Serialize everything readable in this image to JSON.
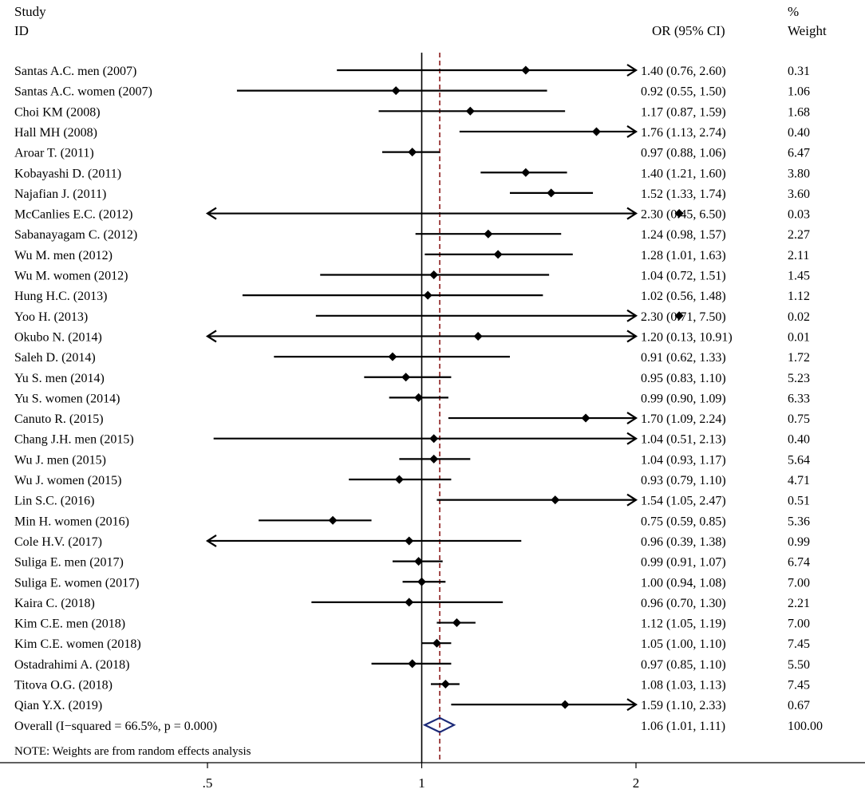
{
  "chart_data": {
    "type": "forest",
    "headers": {
      "study_line1": "Study",
      "study_line2": "ID",
      "or": "OR (95% CI)",
      "weight_line1": "%",
      "weight_line2": "Weight"
    },
    "studies": [
      {
        "label": "Santas A.C. men (2007)",
        "or": 1.4,
        "lo": 0.76,
        "hi": 2.6,
        "or_text": "1.40 (0.76, 2.60)",
        "weight": "0.31"
      },
      {
        "label": "Santas A.C. women (2007)",
        "or": 0.92,
        "lo": 0.55,
        "hi": 1.5,
        "or_text": "0.92 (0.55, 1.50)",
        "weight": "1.06"
      },
      {
        "label": "Choi KM (2008)",
        "or": 1.17,
        "lo": 0.87,
        "hi": 1.59,
        "or_text": "1.17 (0.87, 1.59)",
        "weight": "1.68"
      },
      {
        "label": "Hall MH (2008)",
        "or": 1.76,
        "lo": 1.13,
        "hi": 2.74,
        "or_text": "1.76 (1.13, 2.74)",
        "weight": "0.40"
      },
      {
        "label": "Aroar T. (2011)",
        "or": 0.97,
        "lo": 0.88,
        "hi": 1.06,
        "or_text": "0.97 (0.88, 1.06)",
        "weight": "6.47"
      },
      {
        "label": "Kobayashi D. (2011)",
        "or": 1.4,
        "lo": 1.21,
        "hi": 1.6,
        "or_text": "1.40 (1.21, 1.60)",
        "weight": "3.80"
      },
      {
        "label": "Najafian J. (2011)",
        "or": 1.52,
        "lo": 1.33,
        "hi": 1.74,
        "or_text": "1.52 (1.33, 1.74)",
        "weight": "3.60"
      },
      {
        "label": "McCanlies E.C. (2012)",
        "or": 2.3,
        "lo": 0.45,
        "hi": 6.5,
        "or_text": "2.30 (0.45, 6.50)",
        "weight": "0.03"
      },
      {
        "label": "Sabanayagam C. (2012)",
        "or": 1.24,
        "lo": 0.98,
        "hi": 1.57,
        "or_text": "1.24 (0.98, 1.57)",
        "weight": "2.27"
      },
      {
        "label": "Wu M. men (2012)",
        "or": 1.28,
        "lo": 1.01,
        "hi": 1.63,
        "or_text": "1.28 (1.01, 1.63)",
        "weight": "2.11"
      },
      {
        "label": "Wu M. women (2012)",
        "or": 1.04,
        "lo": 0.72,
        "hi": 1.51,
        "or_text": "1.04 (0.72, 1.51)",
        "weight": "1.45"
      },
      {
        "label": "Hung H.C. (2013)",
        "or": 1.02,
        "lo": 0.56,
        "hi": 1.48,
        "or_text": "1.02 (0.56, 1.48)",
        "weight": "1.12"
      },
      {
        "label": "Yoo H. (2013)",
        "or": 2.3,
        "lo": 0.71,
        "hi": 7.5,
        "or_text": "2.30 (0.71, 7.50)",
        "weight": "0.02"
      },
      {
        "label": "Okubo N. (2014)",
        "or": 1.2,
        "lo": 0.13,
        "hi": 10.91,
        "or_text": "1.20 (0.13, 10.91)",
        "weight": "0.01"
      },
      {
        "label": "Saleh D. (2014)",
        "or": 0.91,
        "lo": 0.62,
        "hi": 1.33,
        "or_text": "0.91 (0.62, 1.33)",
        "weight": "1.72"
      },
      {
        "label": "Yu S. men (2014)",
        "or": 0.95,
        "lo": 0.83,
        "hi": 1.1,
        "or_text": "0.95 (0.83, 1.10)",
        "weight": "5.23"
      },
      {
        "label": "Yu S. women (2014)",
        "or": 0.99,
        "lo": 0.9,
        "hi": 1.09,
        "or_text": "0.99 (0.90, 1.09)",
        "weight": "6.33"
      },
      {
        "label": "Canuto R. (2015)",
        "or": 1.7,
        "lo": 1.09,
        "hi": 2.24,
        "or_text": "1.70 (1.09, 2.24)",
        "weight": "0.75"
      },
      {
        "label": "Chang J.H. men (2015)",
        "or": 1.04,
        "lo": 0.51,
        "hi": 2.13,
        "or_text": "1.04 (0.51, 2.13)",
        "weight": "0.40"
      },
      {
        "label": "Wu J. men (2015)",
        "or": 1.04,
        "lo": 0.93,
        "hi": 1.17,
        "or_text": "1.04 (0.93, 1.17)",
        "weight": "5.64"
      },
      {
        "label": "Wu J. women (2015)",
        "or": 0.93,
        "lo": 0.79,
        "hi": 1.1,
        "or_text": "0.93 (0.79, 1.10)",
        "weight": "4.71"
      },
      {
        "label": "Lin S.C. (2016)",
        "or": 1.54,
        "lo": 1.05,
        "hi": 2.47,
        "or_text": "1.54 (1.05, 2.47)",
        "weight": "0.51"
      },
      {
        "label": "Min H. women (2016)",
        "or": 0.75,
        "lo": 0.59,
        "hi": 0.85,
        "or_text": "0.75 (0.59, 0.85)",
        "weight": "5.36"
      },
      {
        "label": "Cole H.V. (2017)",
        "or": 0.96,
        "lo": 0.39,
        "hi": 1.38,
        "or_text": "0.96 (0.39, 1.38)",
        "weight": "0.99"
      },
      {
        "label": "Suliga E. men (2017)",
        "or": 0.99,
        "lo": 0.91,
        "hi": 1.07,
        "or_text": "0.99 (0.91, 1.07)",
        "weight": "6.74"
      },
      {
        "label": "Suliga E. women (2017)",
        "or": 1.0,
        "lo": 0.94,
        "hi": 1.08,
        "or_text": "1.00 (0.94, 1.08)",
        "weight": "7.00"
      },
      {
        "label": "Kaira C. (2018)",
        "or": 0.96,
        "lo": 0.7,
        "hi": 1.3,
        "or_text": "0.96 (0.70, 1.30)",
        "weight": "2.21"
      },
      {
        "label": "Kim C.E. men (2018)",
        "or": 1.12,
        "lo": 1.05,
        "hi": 1.19,
        "or_text": "1.12 (1.05, 1.19)",
        "weight": "7.00"
      },
      {
        "label": "Kim C.E. women (2018)",
        "or": 1.05,
        "lo": 1.0,
        "hi": 1.1,
        "or_text": "1.05 (1.00, 1.10)",
        "weight": "7.45"
      },
      {
        "label": "Ostadrahimi A. (2018)",
        "or": 0.97,
        "lo": 0.85,
        "hi": 1.1,
        "or_text": "0.97 (0.85, 1.10)",
        "weight": "5.50"
      },
      {
        "label": "Titova O.G. (2018)",
        "or": 1.08,
        "lo": 1.03,
        "hi": 1.13,
        "or_text": "1.08 (1.03, 1.13)",
        "weight": "7.45"
      },
      {
        "label": "Qian Y.X. (2019)",
        "or": 1.59,
        "lo": 1.1,
        "hi": 2.33,
        "or_text": "1.59 (1.10, 2.33)",
        "weight": "0.67"
      }
    ],
    "overall": {
      "label": "Overall  (I−squared = 66.5%, p = 0.000)",
      "or": 1.06,
      "lo": 1.01,
      "hi": 1.11,
      "or_text": "1.06 (1.01, 1.11)",
      "weight": "100.00"
    },
    "note": "NOTE: Weights are from random effects analysis",
    "axis": {
      "scale": "log",
      "range": [
        0.5,
        2
      ],
      "ticks": [
        0.5,
        1,
        2
      ],
      "tick_labels": [
        ".5",
        "1",
        "2"
      ],
      "null_value": 1
    },
    "colors": {
      "marker": "#000000",
      "overall_diamond": "#1c2a78",
      "overall_line": "#8b1a1a"
    }
  }
}
